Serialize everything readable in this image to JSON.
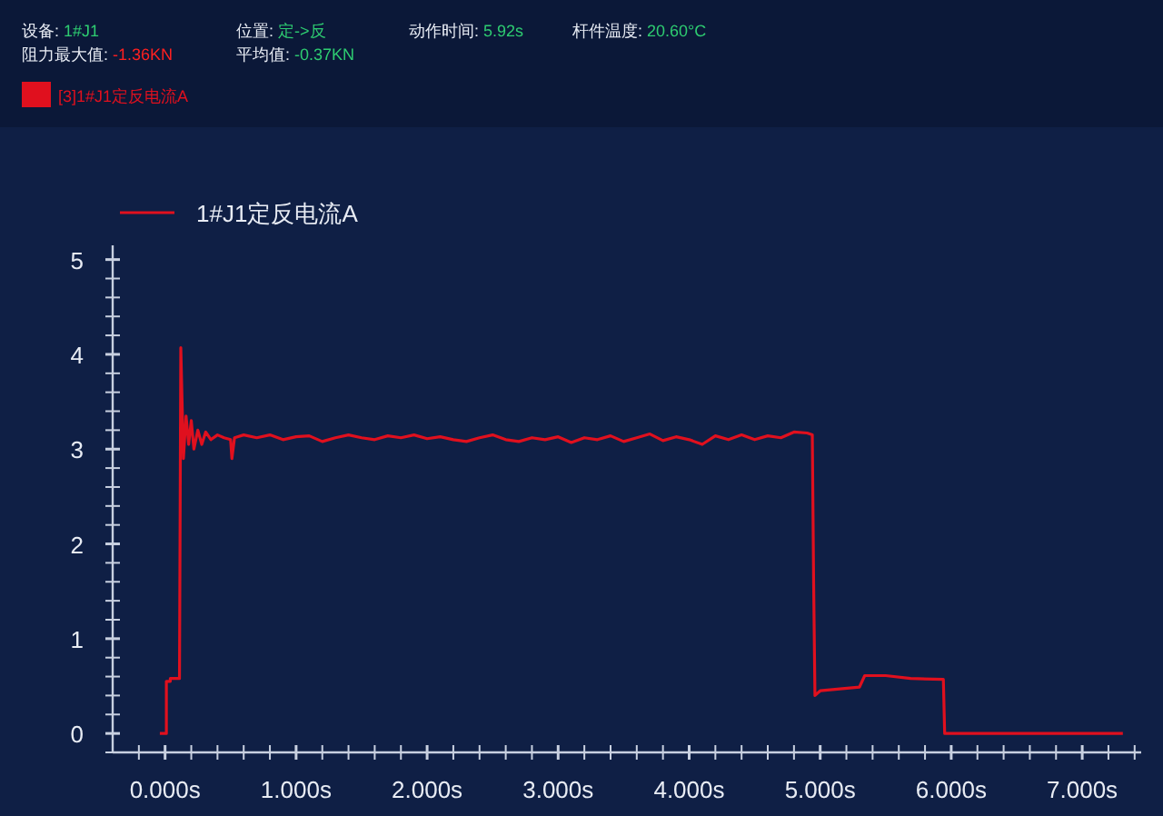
{
  "chart_data": {
    "type": "line",
    "annotations": [
      "设备: 1#J1",
      "位置: 定->反",
      "动作时间: 5.92s",
      "杆件温度: 20.60°C",
      "阻力最大值: -1.36KN",
      "平均值: -0.37KN",
      "[3]1#J1定反电流A"
    ],
    "legend": "top left",
    "grid": false,
    "marker": "none",
    "line_style": "solid",
    "xlim": [
      -0.4,
      7.45
    ],
    "ylim": [
      -0.2,
      5.15
    ],
    "xticks": [
      {
        "value": -0.2,
        "label": null
      },
      {
        "value": 0,
        "label": "0.000s"
      },
      {
        "value": 0.2,
        "label": null
      },
      {
        "value": 0.4,
        "label": null
      },
      {
        "value": 0.6,
        "label": null
      },
      {
        "value": 0.8,
        "label": null
      },
      {
        "value": 1,
        "label": "1.000s"
      },
      {
        "value": 1.2,
        "label": null
      },
      {
        "value": 1.4,
        "label": null
      },
      {
        "value": 1.6,
        "label": null
      },
      {
        "value": 1.8,
        "label": null
      },
      {
        "value": 2,
        "label": "2.000s"
      },
      {
        "value": 2.2,
        "label": null
      },
      {
        "value": 2.4,
        "label": null
      },
      {
        "value": 2.6,
        "label": null
      },
      {
        "value": 2.8,
        "label": null
      },
      {
        "value": 3,
        "label": "3.000s"
      },
      {
        "value": 3.2,
        "label": null
      },
      {
        "value": 3.4,
        "label": null
      },
      {
        "value": 3.6,
        "label": null
      },
      {
        "value": 3.8,
        "label": null
      },
      {
        "value": 4,
        "label": "4.000s"
      },
      {
        "value": 4.2,
        "label": null
      },
      {
        "value": 4.4,
        "label": null
      },
      {
        "value": 4.6,
        "label": null
      },
      {
        "value": 4.8,
        "label": null
      },
      {
        "value": 5,
        "label": "5.000s"
      },
      {
        "value": 5.2,
        "label": null
      },
      {
        "value": 5.4,
        "label": null
      },
      {
        "value": 5.6,
        "label": null
      },
      {
        "value": 5.8,
        "label": null
      },
      {
        "value": 6,
        "label": "6.000s"
      },
      {
        "value": 6.2,
        "label": null
      },
      {
        "value": 6.4,
        "label": null
      },
      {
        "value": 6.6,
        "label": null
      },
      {
        "value": 6.8,
        "label": null
      },
      {
        "value": 7,
        "label": "7.000s"
      },
      {
        "value": 7.2,
        "label": null
      },
      {
        "value": 7.4,
        "label": null
      }
    ],
    "yticks": [
      0,
      1,
      2,
      3,
      4,
      5,
      {
        "value": -0.2,
        "label": null
      },
      {
        "value": 0.2,
        "label": null
      },
      {
        "value": 0.4,
        "label": null
      },
      {
        "value": 0.6,
        "label": null
      },
      {
        "value": 0.8,
        "label": null
      },
      {
        "value": 1.2,
        "label": null
      },
      {
        "value": 1.4,
        "label": null
      },
      {
        "value": 1.6,
        "label": null
      },
      {
        "value": 1.8,
        "label": null
      },
      {
        "value": 2.2,
        "label": null
      },
      {
        "value": 2.4,
        "label": null
      },
      {
        "value": 2.6,
        "label": null
      },
      {
        "value": 2.8,
        "label": null
      },
      {
        "value": 3.2,
        "label": null
      },
      {
        "value": 3.4,
        "label": null
      },
      {
        "value": 3.6,
        "label": null
      },
      {
        "value": 3.8,
        "label": null
      },
      {
        "value": 4.2,
        "label": null
      },
      {
        "value": 4.4,
        "label": null
      },
      {
        "value": 4.6,
        "label": null
      },
      {
        "value": 4.8,
        "label": null
      }
    ],
    "series": [
      {
        "name": "1#J1定反电流A",
        "color": "#e0101e",
        "x": [
          -0.04,
          0.01,
          0.01,
          0.04,
          0.04,
          0.11,
          0.12,
          0.14,
          0.16,
          0.18,
          0.2,
          0.22,
          0.25,
          0.28,
          0.31,
          0.35,
          0.4,
          0.45,
          0.5,
          0.51,
          0.53,
          0.6,
          0.7,
          0.8,
          0.9,
          1.0,
          1.1,
          1.2,
          1.3,
          1.4,
          1.5,
          1.6,
          1.7,
          1.8,
          1.9,
          2.0,
          2.1,
          2.2,
          2.3,
          2.4,
          2.5,
          2.6,
          2.7,
          2.8,
          2.9,
          3.0,
          3.1,
          3.2,
          3.3,
          3.4,
          3.5,
          3.6,
          3.7,
          3.8,
          3.9,
          4.0,
          4.1,
          4.2,
          4.3,
          4.4,
          4.5,
          4.6,
          4.7,
          4.8,
          4.9,
          4.94,
          4.95,
          4.96,
          5.0,
          5.3,
          5.34,
          5.5,
          5.69,
          5.94,
          5.95,
          7.31
        ],
        "values": [
          0,
          0,
          0.55,
          0.55,
          0.58,
          0.58,
          4.07,
          2.9,
          3.35,
          3.05,
          3.3,
          3.0,
          3.2,
          3.05,
          3.18,
          3.1,
          3.15,
          3.12,
          3.1,
          2.9,
          3.12,
          3.15,
          3.12,
          3.15,
          3.1,
          3.13,
          3.14,
          3.08,
          3.12,
          3.15,
          3.12,
          3.1,
          3.14,
          3.12,
          3.15,
          3.11,
          3.13,
          3.1,
          3.08,
          3.12,
          3.15,
          3.1,
          3.08,
          3.12,
          3.1,
          3.13,
          3.07,
          3.12,
          3.1,
          3.14,
          3.08,
          3.12,
          3.16,
          3.09,
          3.13,
          3.1,
          3.05,
          3.14,
          3.1,
          3.15,
          3.1,
          3.14,
          3.12,
          3.18,
          3.17,
          3.15,
          1.58,
          0.4,
          0.45,
          0.49,
          0.61,
          0.61,
          0.58,
          0.57,
          0,
          0
        ]
      }
    ]
  }
}
